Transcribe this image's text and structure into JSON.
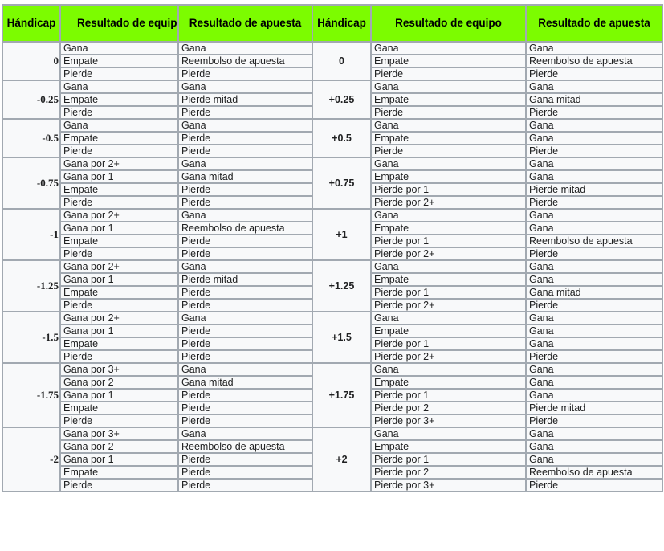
{
  "header": {
    "colors": {
      "header_bg": "#7cfc00",
      "border": "#a2a9b1",
      "cell_bg": "#f8f9fa"
    },
    "columns": [
      "Hándicap",
      "Resultado de equipo",
      "Resultado de apuesta",
      "Hándicap",
      "Resultado de equipo",
      "Resultado de apuesta"
    ]
  },
  "groups": [
    {
      "left": {
        "handicap": "0",
        "rows": [
          [
            "Gana",
            "Gana"
          ],
          [
            "Empate",
            "Reembolso de apuesta"
          ],
          [
            "Pierde",
            "Pierde"
          ]
        ]
      },
      "right": {
        "handicap": "0",
        "rows": [
          [
            "Gana",
            "Gana"
          ],
          [
            "Empate",
            "Reembolso de apuesta"
          ],
          [
            "Pierde",
            "Pierde"
          ]
        ]
      }
    },
    {
      "left": {
        "handicap": "-0.25",
        "rows": [
          [
            "Gana",
            "Gana"
          ],
          [
            "Empate",
            "Pierde mitad"
          ],
          [
            "Pierde",
            "Pierde"
          ]
        ]
      },
      "right": {
        "handicap": "+0.25",
        "rows": [
          [
            "Gana",
            "Gana"
          ],
          [
            "Empate",
            "Gana mitad"
          ],
          [
            "Pierde",
            "Pierde"
          ]
        ]
      }
    },
    {
      "left": {
        "handicap": "-0.5",
        "rows": [
          [
            "Gana",
            "Gana"
          ],
          [
            "Empate",
            "Pierde"
          ],
          [
            "Pierde",
            "Pierde"
          ]
        ]
      },
      "right": {
        "handicap": "+0.5",
        "rows": [
          [
            "Gana",
            "Gana"
          ],
          [
            "Empate",
            "Gana"
          ],
          [
            "Pierde",
            "Pierde"
          ]
        ]
      }
    },
    {
      "left": {
        "handicap": "-0.75",
        "rows": [
          [
            "Gana por 2+",
            "Gana"
          ],
          [
            "Gana por 1",
            "Gana mitad"
          ],
          [
            "Empate",
            "Pierde"
          ],
          [
            "Pierde",
            "Pierde"
          ]
        ]
      },
      "right": {
        "handicap": "+0.75",
        "rows": [
          [
            "Gana",
            "Gana"
          ],
          [
            "Empate",
            "Gana"
          ],
          [
            "Pierde por 1",
            "Pierde mitad"
          ],
          [
            "Pierde por 2+",
            "Pierde"
          ]
        ]
      }
    },
    {
      "left": {
        "handicap": "-1",
        "rows": [
          [
            "Gana por 2+",
            "Gana"
          ],
          [
            "Gana por 1",
            "Reembolso de apuesta"
          ],
          [
            "Empate",
            "Pierde"
          ],
          [
            "Pierde",
            "Pierde"
          ]
        ]
      },
      "right": {
        "handicap": "+1",
        "rows": [
          [
            "Gana",
            "Gana"
          ],
          [
            "Empate",
            "Gana"
          ],
          [
            "Pierde por 1",
            "Reembolso de apuesta"
          ],
          [
            "Pierde por 2+",
            "Pierde"
          ]
        ]
      }
    },
    {
      "left": {
        "handicap": "-1.25",
        "rows": [
          [
            "Gana por 2+",
            "Gana"
          ],
          [
            "Gana por 1",
            "Pierde mitad"
          ],
          [
            "Empate",
            "Pierde"
          ],
          [
            "Pierde",
            "Pierde"
          ]
        ]
      },
      "right": {
        "handicap": "+1.25",
        "rows": [
          [
            "Gana",
            "Gana"
          ],
          [
            "Empate",
            "Gana"
          ],
          [
            "Pierde por 1",
            "Gana mitad"
          ],
          [
            "Pierde por 2+",
            "Pierde"
          ]
        ]
      }
    },
    {
      "left": {
        "handicap": "-1.5",
        "rows": [
          [
            "Gana por 2+",
            "Gana"
          ],
          [
            "Gana por 1",
            "Pierde"
          ],
          [
            "Empate",
            "Pierde"
          ],
          [
            "Pierde",
            "Pierde"
          ]
        ]
      },
      "right": {
        "handicap": "+1.5",
        "rows": [
          [
            "Gana",
            "Gana"
          ],
          [
            "Empate",
            "Gana"
          ],
          [
            "Pierde por 1",
            "Gana"
          ],
          [
            "Pierde por 2+",
            "Pierde"
          ]
        ]
      }
    },
    {
      "left": {
        "handicap": "-1.75",
        "rows": [
          [
            "Gana por 3+",
            "Gana"
          ],
          [
            "Gana por 2",
            "Gana mitad"
          ],
          [
            "Gana por 1",
            "Pierde"
          ],
          [
            "Empate",
            "Pierde"
          ],
          [
            "Pierde",
            "Pierde"
          ]
        ]
      },
      "right": {
        "handicap": "+1.75",
        "rows": [
          [
            "Gana",
            "Gana"
          ],
          [
            "Empate",
            "Gana"
          ],
          [
            "Pierde por 1",
            "Gana"
          ],
          [
            "Pierde por 2",
            "Pierde mitad"
          ],
          [
            "Pierde por 3+",
            "Pierde"
          ]
        ]
      }
    },
    {
      "left": {
        "handicap": "-2",
        "rows": [
          [
            "Gana por 3+",
            "Gana"
          ],
          [
            "Gana por 2",
            "Reembolso de apuesta"
          ],
          [
            "Gana por 1",
            "Pierde"
          ],
          [
            "Empate",
            "Pierde"
          ],
          [
            "Pierde",
            "Pierde"
          ]
        ]
      },
      "right": {
        "handicap": "+2",
        "rows": [
          [
            "Gana",
            "Gana"
          ],
          [
            "Empate",
            "Gana"
          ],
          [
            "Pierde por 1",
            "Gana"
          ],
          [
            "Pierde por 2",
            "Reembolso de apuesta"
          ],
          [
            "Pierde por 3+",
            "Pierde"
          ]
        ]
      }
    }
  ]
}
